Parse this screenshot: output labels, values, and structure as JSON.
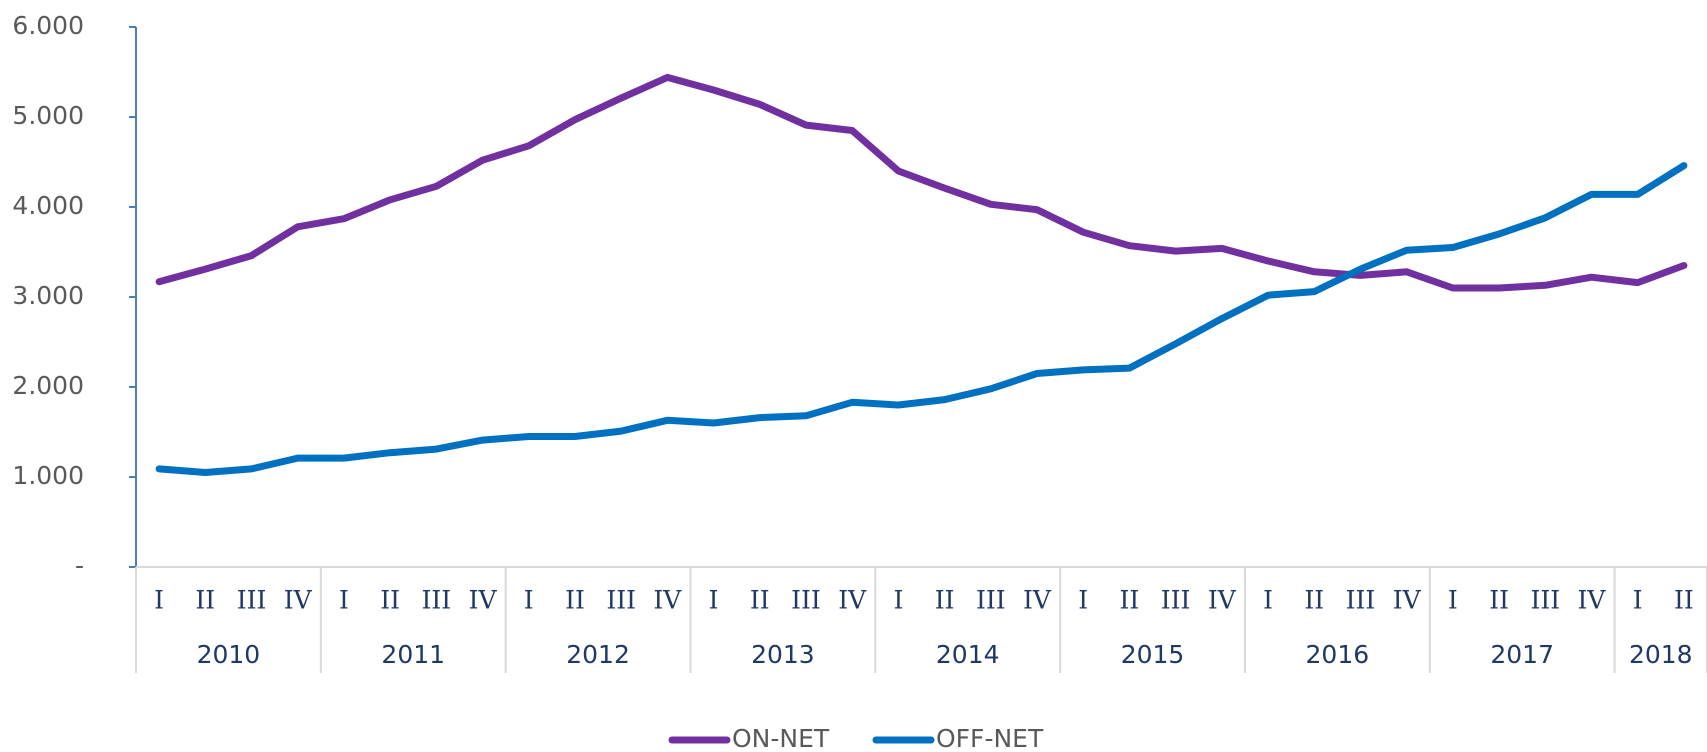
{
  "chart_data": {
    "type": "line",
    "categories": [
      "I",
      "II",
      "III",
      "IV",
      "I",
      "II",
      "III",
      "IV",
      "I",
      "II",
      "III",
      "IV",
      "I",
      "II",
      "III",
      "IV",
      "I",
      "II",
      "III",
      "IV",
      "I",
      "II",
      "III",
      "IV",
      "I",
      "II",
      "III",
      "IV",
      "I",
      "II",
      "III",
      "IV",
      "I",
      "II"
    ],
    "category_groups": [
      {
        "label": "2010",
        "size": 4
      },
      {
        "label": "2011",
        "size": 4
      },
      {
        "label": "2012",
        "size": 4
      },
      {
        "label": "2013",
        "size": 4
      },
      {
        "label": "2014",
        "size": 4
      },
      {
        "label": "2015",
        "size": 4
      },
      {
        "label": "2016",
        "size": 4
      },
      {
        "label": "2017",
        "size": 4
      },
      {
        "label": "2018",
        "size": 2
      }
    ],
    "series": [
      {
        "name": "ON-NET",
        "color": "#7030a0",
        "values": [
          3170,
          3310,
          3460,
          3780,
          3870,
          4080,
          4230,
          4520,
          4680,
          4970,
          5210,
          5440,
          5300,
          5140,
          4910,
          4850,
          4400,
          4210,
          4030,
          3970,
          3720,
          3570,
          3510,
          3540,
          3400,
          3280,
          3240,
          3280,
          3100,
          3100,
          3130,
          3220,
          3160,
          3350
        ]
      },
      {
        "name": "OFF-NET",
        "color": "#0070c0",
        "values": [
          1090,
          1050,
          1090,
          1210,
          1210,
          1270,
          1310,
          1410,
          1450,
          1450,
          1510,
          1630,
          1600,
          1660,
          1680,
          1830,
          1800,
          1860,
          1980,
          2150,
          2190,
          2210,
          2480,
          2760,
          3020,
          3060,
          3310,
          3520,
          3550,
          3700,
          3880,
          4140,
          4140,
          4460
        ]
      }
    ],
    "ylim": [
      0,
      6000
    ],
    "yticks": [
      {
        "value": 0,
        "label": "-"
      },
      {
        "value": 1000,
        "label": "1.000"
      },
      {
        "value": 2000,
        "label": "2.000"
      },
      {
        "value": 3000,
        "label": "3.000"
      },
      {
        "value": 4000,
        "label": "4.000"
      },
      {
        "value": 5000,
        "label": "5.000"
      },
      {
        "value": 6000,
        "label": "6.000"
      }
    ],
    "legend": "bottom"
  }
}
